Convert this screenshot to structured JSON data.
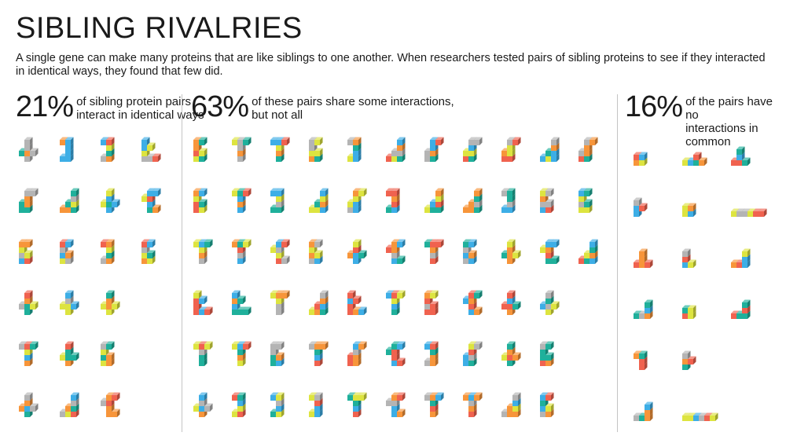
{
  "title": "SIBLING RIVALRIES",
  "description": "A single gene can make many proteins that are like siblings to one another. When researchers tested pairs of sibling proteins to see if they interacted in identical ways, they found that few did.",
  "groups": [
    {
      "key": "identical",
      "percent": "21%",
      "label_line1": "of sibling protein pairs",
      "label_line2": "interact in identical ways",
      "count": 21
    },
    {
      "key": "some",
      "percent": "63%",
      "label_line1": "of these pairs share some interactions,",
      "label_line2": "but not all",
      "count": 63
    },
    {
      "key": "none",
      "percent": "16%",
      "label_line1": "of the pairs have no",
      "label_line2": "interactions in common",
      "count": 16
    }
  ],
  "palette": {
    "orange": "#f7953a",
    "yellow": "#dde440",
    "red": "#f0624f",
    "blue": "#3daee6",
    "teal": "#1fb09b",
    "gray": "#b4b4b4"
  }
}
